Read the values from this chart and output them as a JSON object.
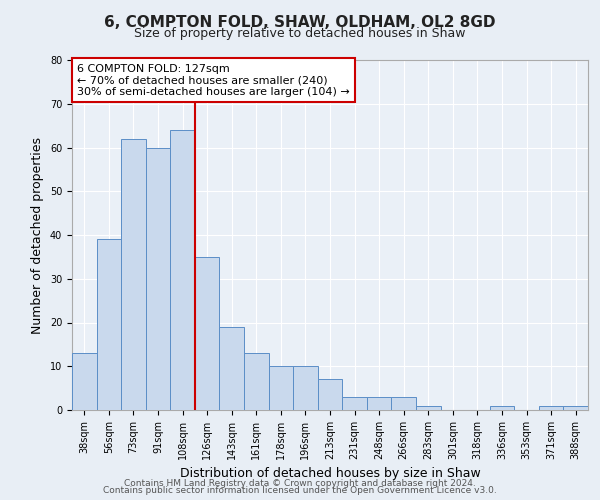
{
  "title": "6, COMPTON FOLD, SHAW, OLDHAM, OL2 8GD",
  "subtitle": "Size of property relative to detached houses in Shaw",
  "xlabel": "Distribution of detached houses by size in Shaw",
  "ylabel": "Number of detached properties",
  "bar_labels": [
    "38sqm",
    "56sqm",
    "73sqm",
    "91sqm",
    "108sqm",
    "126sqm",
    "143sqm",
    "161sqm",
    "178sqm",
    "196sqm",
    "213sqm",
    "231sqm",
    "248sqm",
    "266sqm",
    "283sqm",
    "301sqm",
    "318sqm",
    "336sqm",
    "353sqm",
    "371sqm",
    "388sqm"
  ],
  "bar_values": [
    13,
    39,
    62,
    60,
    64,
    35,
    19,
    13,
    10,
    10,
    7,
    3,
    3,
    3,
    1,
    0,
    0,
    1,
    0,
    1,
    1
  ],
  "bar_color": "#c9d9ed",
  "bar_edge_color": "#5b8ec7",
  "vline_x_index": 5,
  "vline_color": "#cc0000",
  "annotation_text": "6 COMPTON FOLD: 127sqm\n← 70% of detached houses are smaller (240)\n30% of semi-detached houses are larger (104) →",
  "annotation_box_color": "#ffffff",
  "annotation_box_edge_color": "#cc0000",
  "ylim": [
    0,
    80
  ],
  "yticks": [
    0,
    10,
    20,
    30,
    40,
    50,
    60,
    70,
    80
  ],
  "bg_color": "#e8eef5",
  "plot_bg_color": "#eaf0f7",
  "footer_line1": "Contains HM Land Registry data © Crown copyright and database right 2024.",
  "footer_line2": "Contains public sector information licensed under the Open Government Licence v3.0.",
  "title_fontsize": 11,
  "subtitle_fontsize": 9,
  "axis_label_fontsize": 9,
  "tick_fontsize": 7,
  "annotation_fontsize": 8,
  "footer_fontsize": 6.5
}
